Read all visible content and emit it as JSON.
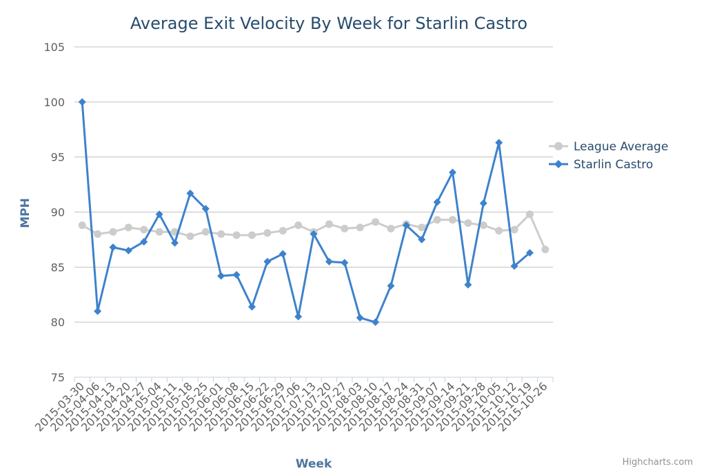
{
  "chart_data": {
    "type": "line",
    "title": "Average Exit Velocity By Week for Starlin Castro",
    "xlabel": "Week",
    "ylabel": "MPH",
    "ylim": [
      75,
      105
    ],
    "yticks": [
      75,
      80,
      85,
      90,
      95,
      100,
      105
    ],
    "grid": true,
    "legend_position": "right",
    "categories": [
      "2015-03-30",
      "2015-04-06",
      "2015-04-13",
      "2015-04-20",
      "2015-04-27",
      "2015-05-04",
      "2015-05-11",
      "2015-05-18",
      "2015-05-25",
      "2015-06-01",
      "2015-06-08",
      "2015-06-15",
      "2015-06-22",
      "2015-06-29",
      "2015-07-06",
      "2015-07-13",
      "2015-07-20",
      "2015-07-27",
      "2015-08-03",
      "2015-08-10",
      "2015-08-17",
      "2015-08-24",
      "2015-08-31",
      "2015-09-07",
      "2015-09-14",
      "2015-09-21",
      "2015-09-28",
      "2015-10-05",
      "2015-10-12",
      "2015-10-19",
      "2015-10-26"
    ],
    "series": [
      {
        "name": "League Average",
        "color": "#cccccc",
        "marker": "circle",
        "values": [
          88.8,
          88.0,
          88.2,
          88.6,
          88.4,
          88.2,
          88.2,
          87.8,
          88.2,
          88.0,
          87.9,
          87.9,
          88.1,
          88.3,
          88.8,
          88.2,
          88.9,
          88.5,
          88.6,
          89.1,
          88.5,
          88.9,
          88.6,
          89.3,
          89.3,
          89.0,
          88.8,
          88.3,
          88.4,
          89.8,
          86.6
        ]
      },
      {
        "name": "Starlin Castro",
        "color": "#3d82cc",
        "marker": "diamond",
        "values": [
          100.0,
          81.0,
          86.8,
          86.5,
          87.3,
          89.8,
          87.2,
          91.7,
          90.3,
          84.2,
          84.3,
          81.4,
          85.5,
          86.2,
          80.5,
          88.0,
          85.5,
          85.4,
          80.4,
          80.0,
          83.3,
          88.8,
          87.5,
          90.9,
          93.6,
          83.4,
          90.8,
          96.3,
          85.1,
          86.3,
          null
        ]
      }
    ]
  },
  "credits": "Highcharts.com"
}
